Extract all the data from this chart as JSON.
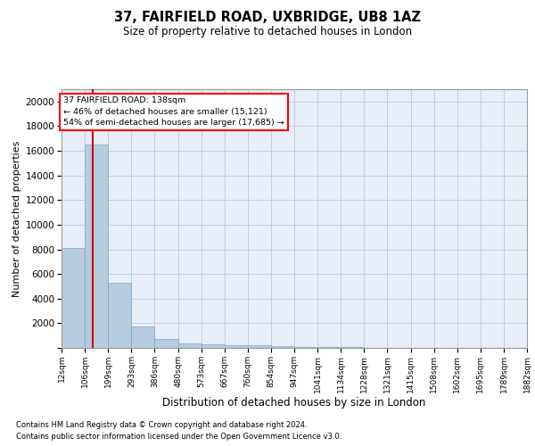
{
  "title1": "37, FAIRFIELD ROAD, UXBRIDGE, UB8 1AZ",
  "title2": "Size of property relative to detached houses in London",
  "xlabel": "Distribution of detached houses by size in London",
  "ylabel": "Number of detached properties",
  "bar_color": "#b8ccdf",
  "bar_edge_color": "#7aaac8",
  "background_color": "#e8eef8",
  "grid_color": "#c0cce0",
  "annotation_line1": "37 FAIRFIELD ROAD: 138sqm",
  "annotation_line2": "← 46% of detached houses are smaller (15,121)",
  "annotation_line3": "54% of semi-detached houses are larger (17,685) →",
  "vline_value": 138,
  "vline_color": "#cc0000",
  "footnote1": "Contains HM Land Registry data © Crown copyright and database right 2024.",
  "footnote2": "Contains public sector information licensed under the Open Government Licence v3.0.",
  "bin_edges": [
    12,
    106,
    199,
    293,
    386,
    480,
    573,
    667,
    760,
    854,
    947,
    1041,
    1134,
    1228,
    1321,
    1415,
    1508,
    1602,
    1695,
    1789,
    1882
  ],
  "bin_labels": [
    "12sqm",
    "106sqm",
    "199sqm",
    "293sqm",
    "386sqm",
    "480sqm",
    "573sqm",
    "667sqm",
    "760sqm",
    "854sqm",
    "947sqm",
    "1041sqm",
    "1134sqm",
    "1228sqm",
    "1321sqm",
    "1415sqm",
    "1508sqm",
    "1602sqm",
    "1695sqm",
    "1789sqm",
    "1882sqm"
  ],
  "bar_heights": [
    8100,
    16500,
    5300,
    1750,
    700,
    350,
    280,
    200,
    200,
    130,
    80,
    50,
    40,
    30,
    20,
    15,
    10,
    8,
    5,
    3
  ],
  "ylim": [
    0,
    21000
  ],
  "yticks": [
    0,
    2000,
    4000,
    6000,
    8000,
    10000,
    12000,
    14000,
    16000,
    18000,
    20000
  ]
}
